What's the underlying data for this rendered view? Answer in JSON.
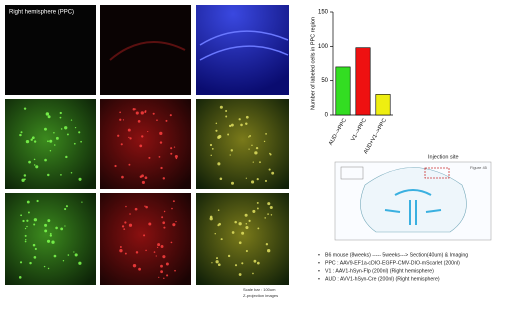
{
  "panel_title": "Right hemisphere (PPC)",
  "image_notes": [
    "Scale bar : 100um",
    "Z-projection images"
  ],
  "chart_data": {
    "type": "bar",
    "y_label": "Number of labeled cells in PPC region",
    "categories": [
      "AUD-->PPC",
      "V1-->PPC",
      "AUD+V1-->PPC"
    ],
    "values": [
      70,
      98,
      30
    ],
    "colors": [
      "#33dd22",
      "#ee1111",
      "#eeee11"
    ],
    "ylim": [
      0,
      150
    ],
    "yticks": [
      0,
      50,
      100,
      150
    ]
  },
  "atlas": {
    "label": "Injection site",
    "figure": "Figure 45"
  },
  "methods": [
    "B6 mouse (8weeks) ----- 5weeks---> Section(40um) & Imaging",
    "PPC : AAV9-EF1a-cDIO-EGFP-CMV-DIO-mScarlet (200nl)",
    "V1 : AAV1-hSyn-Flp (200nl) (Right hemisphere)",
    "AUD : AVV1-hSyn-Cre (200nl) (Right hemisphere)"
  ]
}
